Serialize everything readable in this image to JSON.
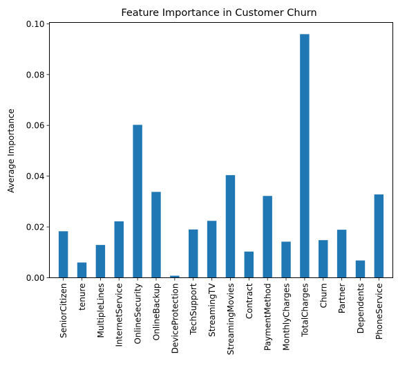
{
  "chart_data": {
    "type": "bar",
    "title": "Feature Importance in Customer Churn",
    "xlabel": "",
    "ylabel": "Average Importance",
    "ylim": [
      0,
      0.1005
    ],
    "yticks": [
      "0.00",
      "0.02",
      "0.04",
      "0.06",
      "0.08",
      "0.10"
    ],
    "bar_color": "#1f77b4",
    "grid": false,
    "legend": "none",
    "categories": [
      "SeniorCitizen",
      "tenure",
      "MultipleLines",
      "InternetService",
      "OnlineSecurity",
      "OnlineBackup",
      "DeviceProtection",
      "TechSupport",
      "StreamingTV",
      "StreamingMovies",
      "Contract",
      "PaymentMethod",
      "MonthlyCharges",
      "TotalCharges",
      "Churn",
      "Partner",
      "Dependents",
      "PhoneService"
    ],
    "values": [
      0.0183,
      0.006,
      0.0129,
      0.0222,
      0.0602,
      0.0338,
      0.0008,
      0.019,
      0.0224,
      0.0404,
      0.0103,
      0.0322,
      0.0142,
      0.0959,
      0.0148,
      0.0189,
      0.0068,
      0.0328
    ]
  }
}
